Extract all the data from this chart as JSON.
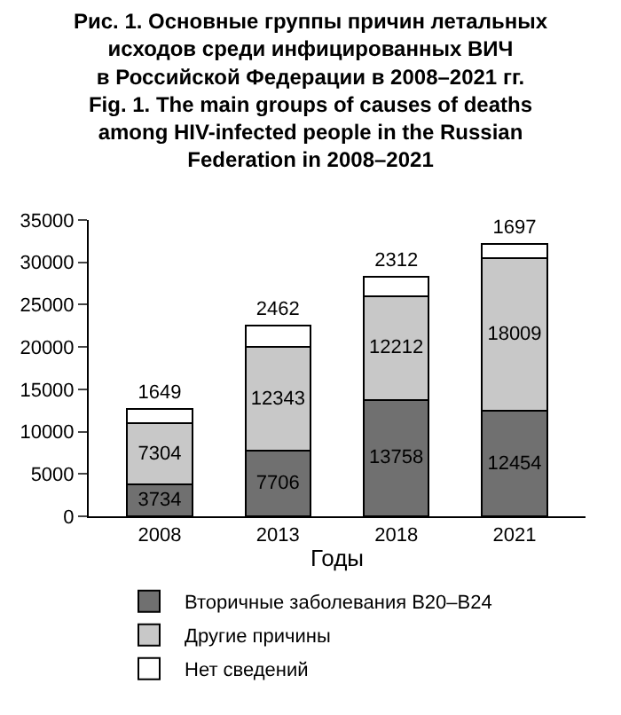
{
  "chart_data": {
    "type": "bar",
    "title": "Рис. 1. Основные группы причин летальных\nисходов среди инфицированных ВИЧ\nв Российской Федерации в 2008–2021 гг.\nFig. 1. The main groups of causes of deaths\namong HIV-infected people in the Russian\nFederation in 2008–2021",
    "xlabel": "Годы",
    "categories": [
      "2008",
      "2013",
      "2018",
      "2021"
    ],
    "stacked": true,
    "data_labels": true,
    "legend": "bottom",
    "ylim": [
      0,
      35000
    ],
    "yticks": [
      0,
      5000,
      10000,
      15000,
      20000,
      25000,
      30000,
      35000
    ],
    "series": [
      {
        "name": "Вторичные заболевания B20–B24",
        "color": "#707070",
        "values": [
          3734,
          7706,
          13758,
          12454
        ]
      },
      {
        "name": "Другие причины",
        "color": "#c8c8c8",
        "values": [
          7304,
          12343,
          12212,
          18009
        ]
      },
      {
        "name": "Нет сведений",
        "color": "#ffffff",
        "values": [
          1649,
          2462,
          2312,
          1697
        ]
      }
    ]
  }
}
